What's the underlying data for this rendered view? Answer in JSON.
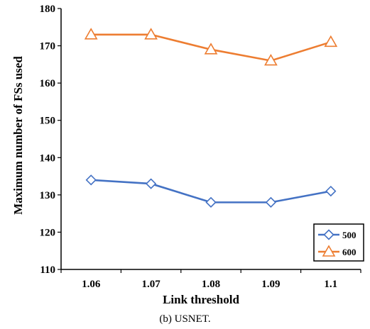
{
  "chart_data": {
    "type": "line",
    "title": "",
    "xlabel": "Link threshold",
    "ylabel": "Maximum number of FSs used",
    "categories": [
      "1.06",
      "1.07",
      "1.08",
      "1.09",
      "1.1"
    ],
    "ylim": [
      110,
      180
    ],
    "yticks": [
      "110",
      "120",
      "130",
      "140",
      "150",
      "160",
      "170",
      "180"
    ],
    "grid": false,
    "legend_position": "bottom-right",
    "series": [
      {
        "name": "500",
        "marker": "diamond",
        "color": "#4472C4",
        "values": [
          134,
          133,
          128,
          128,
          131
        ]
      },
      {
        "name": "600",
        "marker": "triangle",
        "color": "#ED7D31",
        "values": [
          173,
          173,
          169,
          166,
          171
        ]
      }
    ]
  },
  "caption": "(b) USNET."
}
